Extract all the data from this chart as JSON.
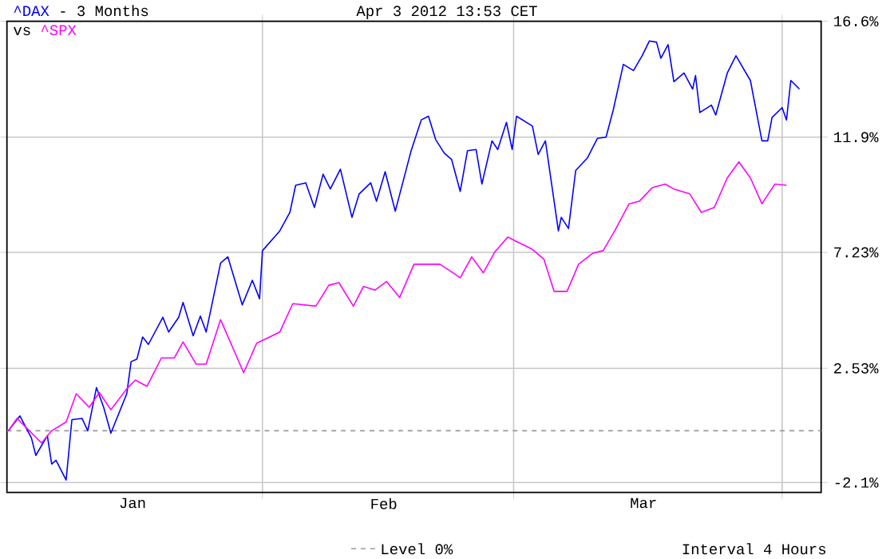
{
  "chart_data": {
    "type": "line",
    "title": "- 3 Months",
    "subtitle": "vs",
    "annotations": [
      "Apr 3 2012 13:53 CET",
      "Interval 4 Hours"
    ],
    "series": [
      {
        "name": "^DAX",
        "color": "#0000ff",
        "x": [
          "2012-01-02T16:00",
          "2012-01-04T00:00",
          "2012-01-05T08:00",
          "2012-01-05T20:00",
          "2012-01-07T04:00",
          "2012-01-07T16:00",
          "2012-01-08T04:00",
          "2012-01-09T08:00",
          "2012-01-10T00:00",
          "2012-01-11T04:00",
          "2012-01-11T20:00",
          "2012-01-12T20:00",
          "2012-01-13T16:00",
          "2012-01-14T12:00",
          "2012-01-16T08:00",
          "2012-01-16T20:00",
          "2012-01-17T12:00",
          "2012-01-18T04:00",
          "2012-01-18T20:00",
          "2012-01-20T12:00",
          "2012-01-21T04:00",
          "2012-01-22T08:00",
          "2012-01-22T20:00",
          "2012-01-24T00:00",
          "2012-01-24T20:00",
          "2012-01-25T12:00",
          "2012-01-27T04:00",
          "2012-01-28T00:00",
          "2012-01-29T16:00",
          "2012-01-30T20:00",
          "2012-01-31T16:00",
          "2012-02-01T00:00",
          "2012-02-03T00:00",
          "2012-02-04T04:00",
          "2012-02-04T20:00",
          "2012-02-06T00:00",
          "2012-02-07T00:00",
          "2012-02-08T00:00",
          "2012-02-08T20:00",
          "2012-02-10T00:00",
          "2012-02-11T08:00",
          "2012-02-12T04:00",
          "2012-02-13T12:00",
          "2012-02-14T04:00",
          "2012-02-15T04:00",
          "2012-02-16T08:00",
          "2012-02-18T04:00",
          "2012-02-19T08:00",
          "2012-02-20T04:00",
          "2012-02-21T00:00",
          "2012-02-22T00:00",
          "2012-02-22T20:00",
          "2012-02-23T20:00",
          "2012-02-24T16:00",
          "2012-02-25T16:00",
          "2012-02-26T08:00",
          "2012-02-27T12:00",
          "2012-02-28T04:00",
          "2012-02-29T04:00",
          "2012-02-29T20:00",
          "2012-03-01T08:00",
          "2012-03-03T04:00",
          "2012-03-03T20:00",
          "2012-03-04T16:00",
          "2012-03-06T04:00",
          "2012-03-06T12:00",
          "2012-03-07T08:00",
          "2012-03-08T04:00",
          "2012-03-09T12:00",
          "2012-03-10T16:00",
          "2012-03-11T16:00",
          "2012-03-12T12:00",
          "2012-03-13T16:00",
          "2012-03-14T20:00",
          "2012-03-15T20:00",
          "2012-03-16T16:00",
          "2012-03-17T12:00",
          "2012-03-18T00:00",
          "2012-03-18T20:00",
          "2012-03-19T12:00",
          "2012-03-20T16:00",
          "2012-03-21T16:00",
          "2012-03-22T00:00",
          "2012-03-22T12:00",
          "2012-03-23T20:00",
          "2012-03-24T08:00",
          "2012-03-25T16:00",
          "2012-03-26T16:00",
          "2012-03-28T08:00",
          "2012-03-29T16:00",
          "2012-03-30T08:00",
          "2012-03-30T20:00",
          "2012-04-01T00:00",
          "2012-04-01T12:00",
          "2012-04-02T00:00",
          "2012-04-03T00:00"
        ],
        "values": [
          0.0,
          0.6,
          -0.3,
          -1.0,
          -0.2,
          -1.35,
          -1.2,
          -2.0,
          0.45,
          0.5,
          0.0,
          1.75,
          0.95,
          -0.1,
          1.5,
          2.8,
          2.9,
          3.8,
          3.5,
          4.6,
          4.0,
          4.6,
          5.2,
          3.85,
          4.65,
          4.0,
          6.8,
          7.05,
          5.1,
          6.1,
          5.35,
          7.3,
          8.1,
          8.85,
          9.95,
          10.05,
          9.05,
          10.4,
          9.8,
          10.6,
          8.65,
          9.6,
          10.05,
          9.3,
          10.5,
          8.9,
          11.35,
          12.6,
          12.75,
          11.8,
          11.25,
          11.0,
          9.7,
          11.35,
          11.4,
          10.0,
          11.75,
          11.4,
          12.5,
          11.4,
          12.75,
          12.35,
          11.2,
          11.75,
          8.1,
          8.65,
          8.2,
          10.55,
          11.05,
          11.85,
          11.9,
          13.0,
          14.85,
          14.6,
          15.2,
          15.8,
          15.75,
          15.1,
          15.65,
          14.15,
          14.5,
          13.85,
          14.4,
          12.9,
          13.2,
          12.8,
          14.5,
          15.2,
          14.2,
          11.75,
          11.75,
          12.7,
          13.1,
          12.6,
          14.2,
          13.85
        ]
      },
      {
        "name": "^SPX",
        "color": "#ff00ff",
        "x": [
          "2012-01-02T16:00",
          "2012-01-03T16:00",
          "2012-01-06T12:00",
          "2012-01-07T16:00",
          "2012-01-09T08:00",
          "2012-01-10T12:00",
          "2012-01-12T00:00",
          "2012-01-13T04:00",
          "2012-01-14T12:00",
          "2012-01-16T08:00",
          "2012-01-17T08:00",
          "2012-01-18T16:00",
          "2012-01-20T08:00",
          "2012-01-21T20:00",
          "2012-01-22T20:00",
          "2012-01-24T08:00",
          "2012-01-25T12:00",
          "2012-01-27T04:00",
          "2012-01-29T20:00",
          "2012-01-31T08:00",
          "2012-02-01T20:00",
          "2012-02-03T00:00",
          "2012-02-04T12:00",
          "2012-02-07T04:00",
          "2012-02-08T16:00",
          "2012-02-09T20:00",
          "2012-02-11T12:00",
          "2012-02-12T16:00",
          "2012-02-14T00:00",
          "2012-02-15T08:00",
          "2012-02-16T20:00",
          "2012-02-18T12:00",
          "2012-02-21T12:00",
          "2012-02-23T00:00",
          "2012-02-23T20:00",
          "2012-02-25T04:00",
          "2012-02-26T12:00",
          "2012-02-27T20:00",
          "2012-02-29T08:00",
          "2012-03-01T04:00",
          "2012-03-03T04:00",
          "2012-03-04T12:00",
          "2012-03-05T16:00",
          "2012-03-07T04:00",
          "2012-03-08T12:00",
          "2012-03-10T04:00",
          "2012-03-11T08:00",
          "2012-03-12T16:00",
          "2012-03-14T08:00",
          "2012-03-15T12:00",
          "2012-03-17T00:00",
          "2012-03-18T12:00",
          "2012-03-19T12:00",
          "2012-03-21T08:00",
          "2012-03-22T16:00",
          "2012-03-24T04:00",
          "2012-03-25T16:00",
          "2012-03-27T00:00",
          "2012-03-28T08:00",
          "2012-03-29T16:00",
          "2012-03-31T04:00",
          "2012-04-01T12:00"
        ],
        "values": [
          0.0,
          0.5,
          -0.5,
          0.0,
          0.35,
          1.5,
          0.95,
          1.55,
          0.85,
          1.7,
          2.05,
          1.8,
          2.95,
          2.95,
          3.6,
          2.7,
          2.7,
          4.5,
          2.35,
          3.55,
          3.8,
          4.0,
          5.15,
          5.05,
          5.9,
          6.0,
          5.05,
          5.85,
          5.7,
          6.05,
          5.4,
          6.75,
          6.75,
          6.4,
          6.2,
          7.05,
          6.4,
          7.25,
          7.85,
          7.7,
          7.35,
          6.95,
          5.65,
          5.65,
          6.75,
          7.2,
          7.3,
          8.1,
          9.2,
          9.3,
          9.85,
          10.0,
          9.8,
          9.6,
          8.85,
          9.05,
          10.25,
          10.9,
          10.25,
          9.2,
          10.0,
          9.95
        ]
      }
    ],
    "xlim": [
      "2012-01-02T12:00",
      "2012-04-05T12:00"
    ],
    "xticks": [
      {
        "value": "2012-01-17",
        "label": "Jan"
      },
      {
        "value": "2012-02-01",
        "label": null
      },
      {
        "value": "2012-02-15",
        "label": "Feb"
      },
      {
        "value": "2012-03-01",
        "label": null
      },
      {
        "value": "2012-03-16",
        "label": "Mar"
      },
      {
        "value": "2012-04-01",
        "label": null
      }
    ],
    "ylim": [
      -2.5,
      16.6
    ],
    "yticks": [
      {
        "value": -2.1,
        "label": "-2.1%"
      },
      {
        "value": 2.53,
        "label": "2.53%"
      },
      {
        "value": 7.23,
        "label": "7.23%"
      },
      {
        "value": 11.9,
        "label": "11.9%"
      },
      {
        "value": 16.6,
        "label": "16.6%"
      }
    ],
    "grid": true,
    "ref_lines": [
      {
        "axis": "y",
        "value": 0,
        "label": "Level 0%",
        "color": "#999999",
        "line_style": "dashed"
      }
    ]
  }
}
